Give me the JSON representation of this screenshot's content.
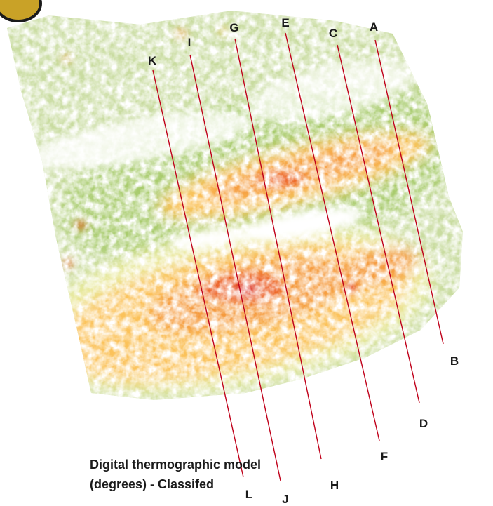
{
  "caption": {
    "line1": "Digital thermographic model",
    "line2": "(degrees) - Classifed"
  },
  "profiles": [
    {
      "start": "A",
      "end": "B"
    },
    {
      "start": "C",
      "end": "D"
    },
    {
      "start": "E",
      "end": "F"
    },
    {
      "start": "G",
      "end": "H"
    },
    {
      "start": "I",
      "end": "J"
    },
    {
      "start": "K",
      "end": "L"
    }
  ],
  "colors": {
    "profile_line": "#c0001a",
    "class_1": "#c9dca0",
    "class_2": "#a9cc6e",
    "class_3": "#e9ea9c",
    "class_4": "#fbc25a",
    "class_5": "#f59a3c",
    "class_6": "#ec5b22",
    "class_7": "#d60f14"
  },
  "icons": {
    "corner_mark": "logo-seal-icon"
  }
}
